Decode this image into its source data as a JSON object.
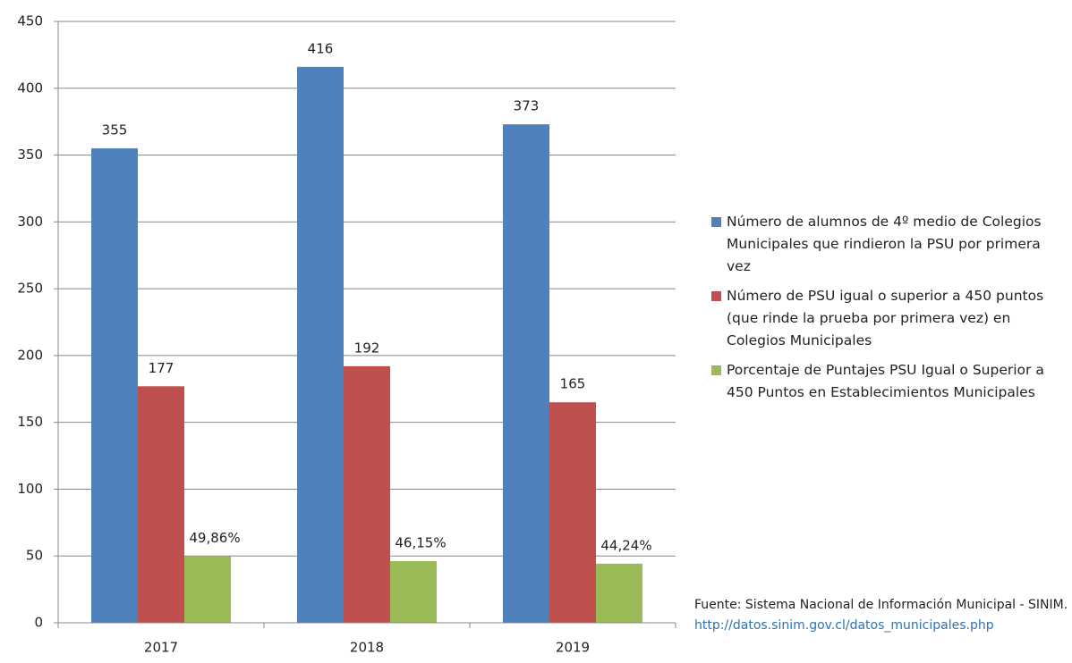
{
  "chart_data": {
    "type": "bar",
    "categories": [
      "2017",
      "2018",
      "2019"
    ],
    "series": [
      {
        "name": "Número de alumnos de 4º medio de Colegios Municipales que rindieron la PSU por primera vez",
        "color": "#4f81bd",
        "values": [
          355,
          416,
          373
        ]
      },
      {
        "name": "Número de PSU igual o superior a 450 puntos (que rinde la prueba por primera vez) en Colegios Municipales",
        "color": "#c0504d",
        "values": [
          177,
          192,
          165
        ]
      },
      {
        "name": "Porcentaje de Puntajes PSU Igual o Superior a 450 Puntos en Establecimientos Municipales",
        "color": "#9bbb59",
        "values": [
          49.86,
          46.15,
          44.24
        ],
        "value_labels": [
          "49,86%",
          "46,15%",
          "44,24%"
        ]
      }
    ],
    "ylim": [
      0,
      450
    ],
    "yticks": [
      0,
      50,
      100,
      150,
      200,
      250,
      300,
      350,
      400,
      450
    ],
    "grid": true,
    "legend": "right",
    "source": "Fuente: Sistema Nacional de Información Municipal - SINIM.",
    "source_url": "http://datos.sinim.gov.cl/datos_municipales.php"
  }
}
